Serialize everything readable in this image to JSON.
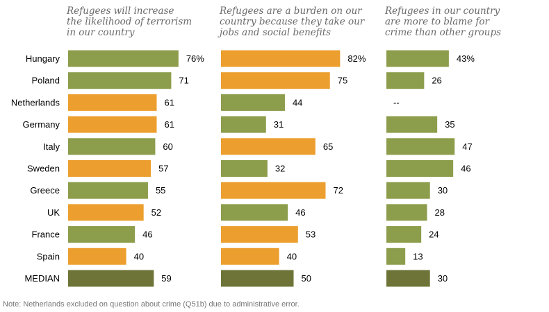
{
  "chart_data": {
    "type": "bar",
    "orientation": "horizontal",
    "categories": [
      "Hungary",
      "Poland",
      "Netherlands",
      "Germany",
      "Italy",
      "Sweden",
      "Greece",
      "UK",
      "France",
      "Spain",
      "MEDIAN"
    ],
    "series": [
      {
        "name": "Refugees will increase the likelihood of terrorism in our country",
        "title_lines": [
          "Refugees will increase",
          "the likelihood of terrorism",
          "in our country"
        ],
        "values": [
          76,
          71,
          61,
          61,
          60,
          57,
          55,
          52,
          46,
          40,
          59
        ],
        "labels": [
          "76%",
          "71",
          "61",
          "61",
          "60",
          "57",
          "55",
          "52",
          "46",
          "40",
          "59"
        ],
        "colors": [
          "green",
          "green",
          "orange",
          "orange",
          "green",
          "orange",
          "green",
          "orange",
          "green",
          "orange",
          "median"
        ]
      },
      {
        "name": "Refugees are a burden on our country because they take our jobs and social benefits",
        "title_lines": [
          "Refugees are a burden on our",
          "country because they take our",
          "jobs and social benefits"
        ],
        "values": [
          82,
          75,
          44,
          31,
          65,
          32,
          72,
          46,
          53,
          40,
          50
        ],
        "labels": [
          "82%",
          "75",
          "44",
          "31",
          "65",
          "32",
          "72",
          "46",
          "53",
          "40",
          "50"
        ],
        "colors": [
          "orange",
          "orange",
          "green",
          "green",
          "orange",
          "green",
          "orange",
          "green",
          "orange",
          "orange",
          "median"
        ]
      },
      {
        "name": "Refugees in our country are more to blame for crime than other groups",
        "title_lines": [
          "Refugees in our country",
          "are more to blame for",
          "crime than other groups"
        ],
        "values": [
          43,
          26,
          null,
          35,
          47,
          46,
          30,
          28,
          24,
          13,
          30
        ],
        "labels": [
          "43%",
          "26",
          "--",
          "35",
          "47",
          "46",
          "30",
          "28",
          "24",
          "13",
          "30"
        ],
        "colors": [
          "green",
          "green",
          "none",
          "green",
          "green",
          "green",
          "green",
          "green",
          "green",
          "green",
          "median"
        ]
      }
    ],
    "xlim": [
      0,
      100
    ],
    "palette": {
      "green": "#8c9d4b",
      "orange": "#ec9f2e",
      "median": "#6e7437"
    },
    "legend": "none",
    "grid": false
  },
  "note": "Note: Netherlands excluded on question about crime (Q51b) due to administrative error."
}
